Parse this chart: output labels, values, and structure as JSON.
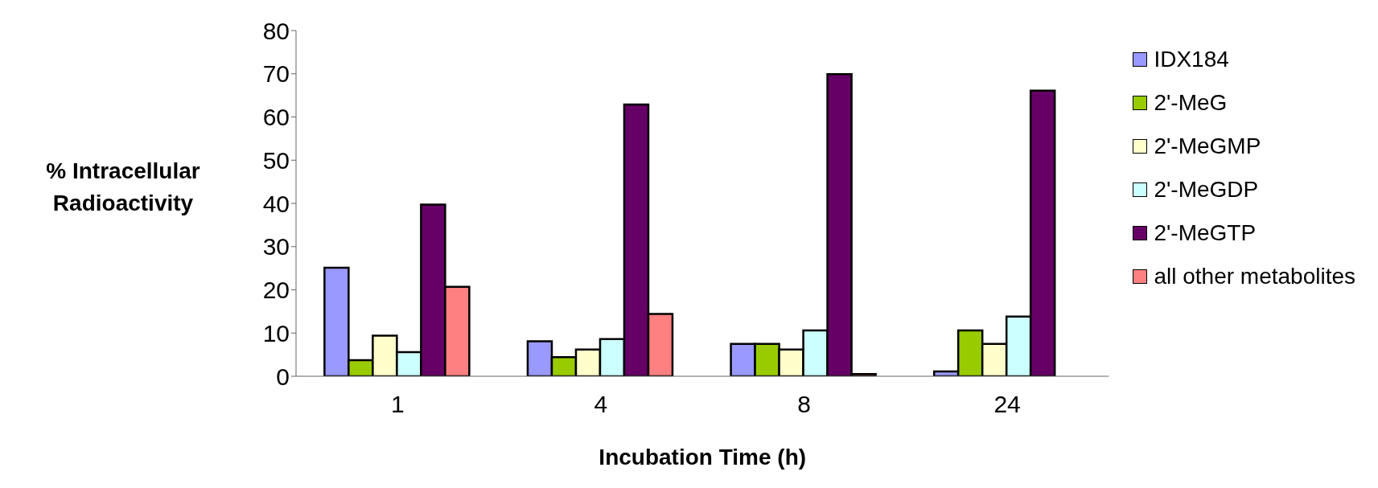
{
  "chart_data": {
    "type": "bar",
    "xlabel": "Incubation Time (h)",
    "ylabel": "% Intracellular Radioactivity",
    "categories": [
      "1",
      "4",
      "8",
      "24"
    ],
    "series": [
      {
        "name": "IDX184",
        "color": "#9999ff",
        "values": [
          25.1,
          8.1,
          7.5,
          1.1
        ]
      },
      {
        "name": "2'-MeG",
        "color": "#99cc00",
        "values": [
          3.7,
          4.4,
          7.5,
          10.6
        ]
      },
      {
        "name": "2'-MeGMP",
        "color": "#ffffcc",
        "values": [
          9.4,
          6.2,
          6.2,
          7.5
        ]
      },
      {
        "name": "2'-MeGDP",
        "color": "#ccffff",
        "values": [
          5.6,
          8.6,
          10.6,
          13.8
        ]
      },
      {
        "name": "2'-MeGTP",
        "color": "#660066",
        "values": [
          39.7,
          62.9,
          69.9,
          66.1
        ]
      },
      {
        "name": "all other metabolites",
        "color": "#ff8080",
        "values": [
          20.7,
          14.4,
          0.5,
          0
        ]
      }
    ],
    "ylim": [
      0,
      80
    ],
    "yticks": [
      0,
      10,
      20,
      30,
      40,
      50,
      60,
      70,
      80
    ],
    "grid": false,
    "legend": "right"
  }
}
